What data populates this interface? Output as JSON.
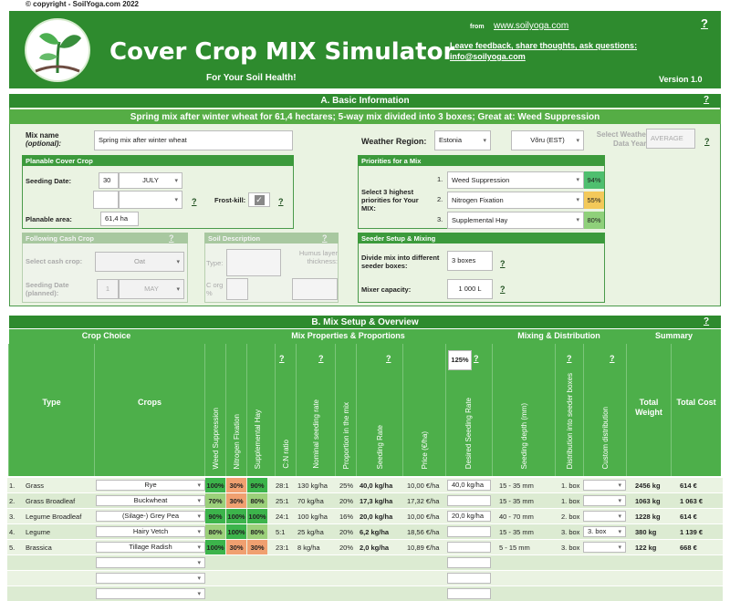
{
  "copyright": "© copyright - SoilYoga.com 2022",
  "header": {
    "title": "Cover Crop MIX Simulator",
    "subtitle": "For Your Soil Health!",
    "from": "from",
    "site": "www.soilyoga.com",
    "feedback": "Leave feedback, share thoughts, ask questions:",
    "email": "info@soilyoga.com",
    "version": "Version 1.0",
    "help": "?"
  },
  "sectionA": {
    "title": "A. Basic Information",
    "summary": "Spring mix after winter wheat for 61,4 hectares; 5-way mix divided into 3 boxes; Great at: Weed Suppression",
    "help": "?"
  },
  "mix": {
    "label": "Mix name",
    "sublabel": "(optional):",
    "value": "Spring mix after winter wheat"
  },
  "weather": {
    "label": "Weather Region:",
    "region": "Estonia",
    "station": "Võru (EST)",
    "data_year_label": "Select Weather Data Year:",
    "data_year": "AVERAGE",
    "help": "?"
  },
  "planable": {
    "title": "Planable Cover Crop",
    "seeding_label": "Seeding Date:",
    "day": "30",
    "month": "JULY",
    "help": "?",
    "frost_label": "Frost-kill:",
    "frost_checked": "✓",
    "area_label": "Planable area:",
    "area": "61,4 ha"
  },
  "priorities": {
    "title": "Priorities for a Mix",
    "label": "Select 3 highest priorities for Your MIX:",
    "items": [
      {
        "n": "1.",
        "name": "Weed Suppression",
        "pct": "94%",
        "color": "#4fbf6f"
      },
      {
        "n": "2.",
        "name": "Nitrogen Fixation",
        "pct": "55%",
        "color": "#f3c95a"
      },
      {
        "n": "3.",
        "name": "Supplemental Hay",
        "pct": "80%",
        "color": "#8fd07a"
      }
    ]
  },
  "cash": {
    "title": "Following Cash Crop",
    "help": "?",
    "select_label": "Select cash crop:",
    "crop": "Oat",
    "date_label": "Seeding Date (planned):",
    "day": "1",
    "month": "MAY"
  },
  "soil": {
    "title": "Soil Description",
    "help": "?",
    "type_label": "Type:",
    "humus_label": "Humus layer thickness:",
    "corg_label": "C org %"
  },
  "seeder": {
    "title": "Seeder Setup & Mixing",
    "divide_label": "Divide mix into different seeder boxes:",
    "boxes": "3 boxes",
    "capacity_label": "Mixer capacity:",
    "capacity": "1 000 L",
    "help": "?"
  },
  "sectionB": {
    "title": "B. Mix Setup & Overview",
    "help": "?",
    "groups": [
      "Crop Choice",
      "Mix Properties & Proportions",
      "Mixing & Distribution",
      "Summary"
    ],
    "headers": {
      "type": "Type",
      "crops": "Crops",
      "weed": "Weed Suppression",
      "nitro": "Nitrogen Fixation",
      "hay": "Supplemental Hay",
      "cn": "C:N ratio",
      "nominal": "Nominal seeding rate",
      "proportion": "Proportion in the mix",
      "rate": "Seeding Rate",
      "price": "Price (€/ha)",
      "desired": "Desired Seeding Rate",
      "depth": "Seeding depth (mm)",
      "dist": "Distribution into seeder boxes",
      "custom": "Custom distribution",
      "weight": "Total Weight",
      "cost": "Total Cost",
      "pct125": "125%",
      "q": "?"
    }
  },
  "rows": [
    {
      "n": "1.",
      "type": "Grass",
      "crop": "Rye",
      "w": "100%",
      "nf": "30%",
      "h": "90%",
      "cn": "28:1",
      "nom": "130 kg/ha",
      "prop": "25%",
      "rate": "40,0 kg/ha",
      "price": "10,00 €/ha",
      "desired": "40,0 kg/ha",
      "depth": "15 - 35 mm",
      "box": "1. box",
      "custom": "",
      "weight": "2456 kg",
      "cost": "614 €"
    },
    {
      "n": "2.",
      "type": "Grass Broadleaf",
      "crop": "Buckwheat",
      "w": "70%",
      "nf": "30%",
      "h": "80%",
      "cn": "25:1",
      "nom": "70 kg/ha",
      "prop": "20%",
      "rate": "17,3 kg/ha",
      "price": "17,32 €/ha",
      "desired": "",
      "depth": "15 - 35 mm",
      "box": "1. box",
      "custom": "",
      "weight": "1063 kg",
      "cost": "1 063 €"
    },
    {
      "n": "3.",
      "type": "Legume Broadleaf",
      "crop": "(Silage-) Grey Pea",
      "w": "90%",
      "nf": "100%",
      "h": "100%",
      "cn": "24:1",
      "nom": "100 kg/ha",
      "prop": "16%",
      "rate": "20,0 kg/ha",
      "price": "10,00 €/ha",
      "desired": "20,0 kg/ha",
      "depth": "40 - 70 mm",
      "box": "2. box",
      "custom": "",
      "weight": "1228 kg",
      "cost": "614 €"
    },
    {
      "n": "4.",
      "type": "Legume",
      "crop": "Hairy Vetch",
      "w": "80%",
      "nf": "100%",
      "h": "80%",
      "cn": "5:1",
      "nom": "25 kg/ha",
      "prop": "20%",
      "rate": "6,2 kg/ha",
      "price": "18,56 €/ha",
      "desired": "",
      "depth": "15 - 35 mm",
      "box": "3. box",
      "custom": "3. box",
      "weight": "380 kg",
      "cost": "1 139 €"
    },
    {
      "n": "5.",
      "type": "Brassica",
      "crop": "Tillage Radish",
      "w": "100%",
      "nf": "30%",
      "h": "30%",
      "cn": "23:1",
      "nom": "8 kg/ha",
      "prop": "20%",
      "rate": "2,0 kg/ha",
      "price": "10,89 €/ha",
      "desired": "",
      "depth": "5 - 15 mm",
      "box": "3. box",
      "custom": "",
      "weight": "122 kg",
      "cost": "668 €"
    }
  ],
  "colors": {
    "dark_green": "#2e8b2e",
    "light_green": "#eaf3e2",
    "orange": "#f0a070"
  }
}
